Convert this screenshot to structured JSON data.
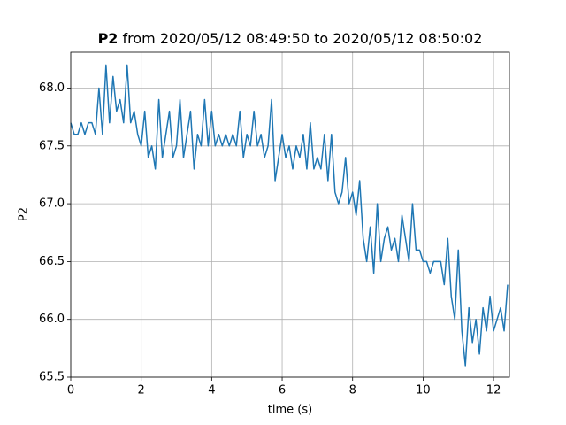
{
  "chart_data": {
    "type": "line",
    "title_bold": "P2",
    "title": "from 2020/05/12 08:49:50 to 2020/05/12 08:50:02",
    "x_label": "time (s)",
    "y_label": "P2",
    "x": [
      0,
      0.1,
      0.2,
      0.3,
      0.4,
      0.5,
      0.6,
      0.7,
      0.8,
      0.9,
      1,
      1.1,
      1.2,
      1.3,
      1.4,
      1.5,
      1.6,
      1.7,
      1.8,
      1.9,
      2,
      2.1,
      2.2,
      2.3,
      2.4,
      2.5,
      2.6,
      2.7,
      2.8,
      2.9,
      3,
      3.1,
      3.2,
      3.3,
      3.4,
      3.5,
      3.6,
      3.7,
      3.8,
      3.9,
      4,
      4.1,
      4.2,
      4.3,
      4.4,
      4.5,
      4.6,
      4.7,
      4.8,
      4.9,
      5,
      5.1,
      5.2,
      5.3,
      5.4,
      5.5,
      5.6,
      5.7,
      5.8,
      5.9,
      6,
      6.1,
      6.2,
      6.3,
      6.4,
      6.5,
      6.6,
      6.7,
      6.8,
      6.9,
      7,
      7.1,
      7.2,
      7.3,
      7.4,
      7.5,
      7.6,
      7.7,
      7.8,
      7.9,
      8,
      8.1,
      8.2,
      8.3,
      8.4,
      8.5,
      8.6,
      8.7,
      8.8,
      8.9,
      9,
      9.1,
      9.2,
      9.3,
      9.4,
      9.5,
      9.6,
      9.7,
      9.8,
      9.9,
      10,
      10.1,
      10.2,
      10.3,
      10.4,
      10.5,
      10.6,
      10.7,
      10.8,
      10.9,
      11,
      11.1,
      11.2,
      11.3,
      11.4,
      11.5,
      11.6,
      11.7,
      11.8,
      11.9,
      12,
      12.1,
      12.2,
      12.3,
      12.4
    ],
    "series": [
      {
        "name": "P2",
        "color": "#1f77b4",
        "values": [
          67.7,
          67.6,
          67.6,
          67.7,
          67.6,
          67.7,
          67.7,
          67.6,
          68.0,
          67.6,
          68.2,
          67.7,
          68.1,
          67.8,
          67.9,
          67.7,
          68.2,
          67.7,
          67.8,
          67.6,
          67.5,
          67.8,
          67.4,
          67.5,
          67.3,
          67.9,
          67.4,
          67.6,
          67.8,
          67.4,
          67.5,
          67.9,
          67.4,
          67.6,
          67.8,
          67.3,
          67.6,
          67.5,
          67.9,
          67.5,
          67.8,
          67.5,
          67.6,
          67.5,
          67.6,
          67.5,
          67.6,
          67.5,
          67.8,
          67.4,
          67.6,
          67.5,
          67.8,
          67.5,
          67.6,
          67.4,
          67.5,
          67.9,
          67.2,
          67.4,
          67.6,
          67.4,
          67.5,
          67.3,
          67.5,
          67.4,
          67.6,
          67.3,
          67.7,
          67.3,
          67.4,
          67.3,
          67.6,
          67.2,
          67.6,
          67.1,
          67.0,
          67.1,
          67.4,
          67.0,
          67.1,
          66.9,
          67.2,
          66.7,
          66.5,
          66.8,
          66.4,
          67.0,
          66.5,
          66.7,
          66.8,
          66.6,
          66.7,
          66.5,
          66.9,
          66.7,
          66.5,
          67.0,
          66.6,
          66.6,
          66.5,
          66.5,
          66.4,
          66.5,
          66.5,
          66.5,
          66.3,
          66.7,
          66.2,
          66.0,
          66.6,
          65.9,
          65.6,
          66.1,
          65.8,
          66.0,
          65.7,
          66.1,
          65.9,
          66.2,
          65.9,
          66.0,
          66.1,
          65.9,
          66.3
        ]
      }
    ],
    "xlim": [
      0,
      12.45
    ],
    "xticks": [
      0,
      2,
      4,
      6,
      8,
      10,
      12
    ],
    "ylim": [
      65.5,
      68.31
    ],
    "yticks": [
      65.5,
      {
        "value": 66,
        "label": "66.0"
      },
      66.5,
      {
        "value": 67,
        "label": "67.0"
      },
      67.5,
      {
        "value": 68,
        "label": "68.0"
      }
    ],
    "grid": true
  }
}
